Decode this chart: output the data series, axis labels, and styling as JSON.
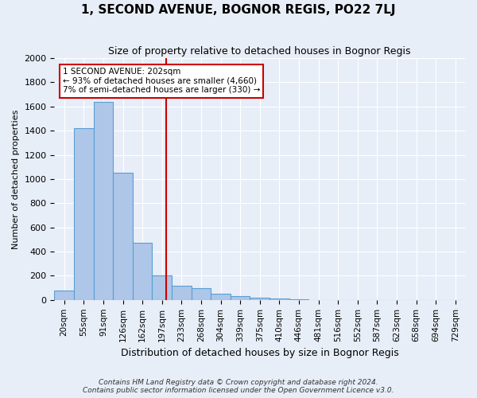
{
  "title": "1, SECOND AVENUE, BOGNOR REGIS, PO22 7LJ",
  "subtitle": "Size of property relative to detached houses in Bognor Regis",
  "xlabel": "Distribution of detached houses by size in Bognor Regis",
  "ylabel": "Number of detached properties",
  "bin_labels": [
    "20sqm",
    "55sqm",
    "91sqm",
    "126sqm",
    "162sqm",
    "197sqm",
    "233sqm",
    "268sqm",
    "304sqm",
    "339sqm",
    "375sqm",
    "410sqm",
    "446sqm",
    "481sqm",
    "516sqm",
    "552sqm",
    "587sqm",
    "623sqm",
    "658sqm",
    "694sqm",
    "729sqm"
  ],
  "bar_heights": [
    80,
    1420,
    1640,
    1050,
    470,
    200,
    120,
    100,
    50,
    30,
    20,
    10,
    5,
    0,
    0,
    0,
    0,
    0,
    0,
    0,
    0
  ],
  "bar_color": "#aec6e8",
  "bar_edge_color": "#5a9fd4",
  "background_color": "#e8eef8",
  "grid_color": "#ffffff",
  "property_line_x": 5.2,
  "annotation_text": "1 SECOND AVENUE: 202sqm\n← 93% of detached houses are smaller (4,660)\n7% of semi-detached houses are larger (330) →",
  "annotation_box_color": "#ffffff",
  "annotation_box_edge": "#cc0000",
  "property_line_color": "#cc0000",
  "footer_line1": "Contains HM Land Registry data © Crown copyright and database right 2024.",
  "footer_line2": "Contains public sector information licensed under the Open Government Licence v3.0.",
  "ylim": [
    0,
    2000
  ],
  "yticks": [
    0,
    200,
    400,
    600,
    800,
    1000,
    1200,
    1400,
    1600,
    1800,
    2000
  ]
}
